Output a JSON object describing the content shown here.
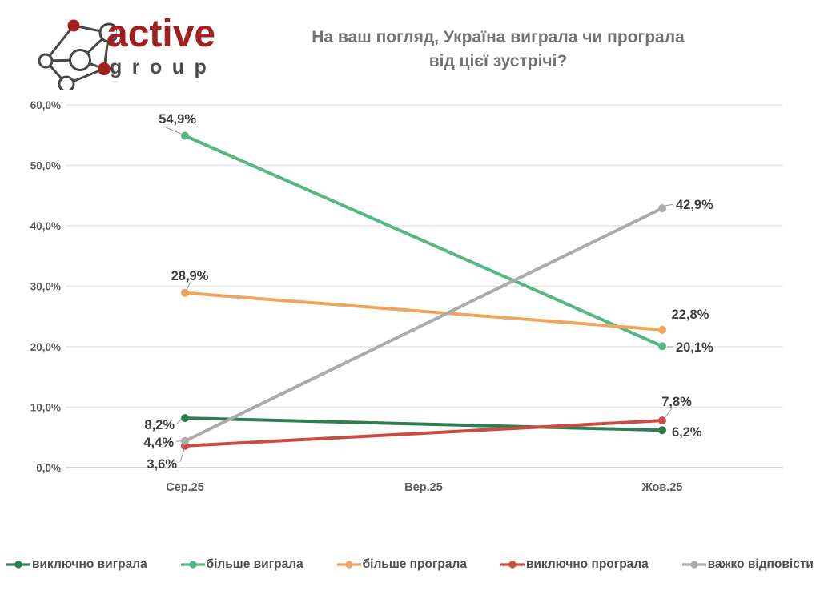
{
  "logo": {
    "brand": "active",
    "sub": "group"
  },
  "header": {
    "title_line1": "На ваш погляд, Україна виграла чи програла",
    "title_line2": "від цієї зустрічі?"
  },
  "colors": {
    "background": "#ffffff",
    "title_text": "#737373",
    "axis_text": "#595959",
    "data_label_text": "#3d3d3d",
    "gridline": "#e7e7e7",
    "axis_line": "#d4d4d4",
    "leader_line": "#9a9a9a",
    "brand_red": "#A21F1F",
    "logo_ink": "#474747",
    "legend_text": "#4f4f4f"
  },
  "chart_data": {
    "type": "line",
    "title": "На ваш погляд, Україна виграла чи програла від цієї зустрічі?",
    "categories": [
      "Сер.25",
      "Вер.25",
      "Жов.25"
    ],
    "ylim": [
      0,
      60
    ],
    "grid": true,
    "legend_position": "bottom",
    "y_ticks": [
      {
        "value": 0,
        "label": "0,0%"
      },
      {
        "value": 10,
        "label": "10,0%"
      },
      {
        "value": 20,
        "label": "20,0%"
      },
      {
        "value": 30,
        "label": "30,0%"
      },
      {
        "value": 40,
        "label": "40,0%"
      },
      {
        "value": 50,
        "label": "50,0%"
      },
      {
        "value": 60,
        "label": "60,0%"
      }
    ],
    "series": [
      {
        "name": "виключно виграла",
        "color": "#2E7E52",
        "values": [
          8.2,
          null,
          6.2
        ],
        "labels": [
          "8,2%",
          "",
          "6,2%"
        ]
      },
      {
        "name": "більше виграла",
        "color": "#55B882",
        "values": [
          54.9,
          null,
          20.1
        ],
        "labels": [
          "54,9%",
          "",
          "20,1%"
        ]
      },
      {
        "name": "більше програла",
        "color": "#F0A55F",
        "values": [
          28.9,
          null,
          22.8
        ],
        "labels": [
          "28,9%",
          "",
          "22,8%"
        ]
      },
      {
        "name": "виключно програла",
        "color": "#CB4C41",
        "values": [
          3.6,
          null,
          7.8
        ],
        "labels": [
          "3,6%",
          "",
          "7,8%"
        ]
      },
      {
        "name": "важко відповісти",
        "color": "#ABABAB",
        "values": [
          4.4,
          null,
          42.9
        ],
        "labels": [
          "4,4%",
          "",
          "42,9%"
        ]
      }
    ]
  }
}
